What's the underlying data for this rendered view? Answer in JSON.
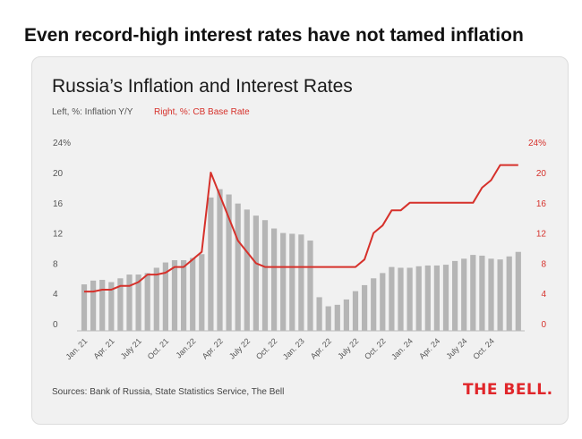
{
  "headline": "Even record-high interest rates have not tamed inflation",
  "card": {
    "title": "Russia’s Inflation and Interest Rates",
    "legend_left": "Left, %:  Inflation Y/Y",
    "legend_right": "Right, %: CB Base Rate",
    "source": "Sources: Bank of Russia,  State Statistics Service, The Bell",
    "logo": "THE BELL."
  },
  "colors": {
    "inflation": "#b5b5b5",
    "rate": "#d6312b",
    "background": "#f1f1f1"
  },
  "chart_data": {
    "type": "bar",
    "ylim": [
      0,
      24
    ],
    "y_ticks": [
      "0",
      "4",
      "8",
      "12",
      "16",
      "20",
      "24%"
    ],
    "x_tick_labels": [
      "Jan. 21",
      "Apr. 21",
      "July 21",
      "Oct. 21",
      "Jan.22",
      "Apr. 22",
      "July 22",
      "Oct. 22",
      "Jan. 23",
      "Apr. 22",
      "July 22",
      "Oct. 22",
      "Jan. 24",
      "Apr. 24",
      "July 24",
      "Oct. 24"
    ],
    "series": [
      {
        "name": "Inflation Y/Y",
        "axis": "left",
        "type": "bar",
        "values": [
          5.2,
          5.7,
          5.8,
          5.5,
          6.0,
          6.5,
          6.5,
          6.7,
          7.4,
          8.1,
          8.4,
          8.4,
          8.7,
          9.2,
          16.7,
          17.8,
          17.1,
          15.9,
          15.1,
          14.3,
          13.7,
          12.6,
          12.0,
          11.9,
          11.8,
          11.0,
          3.5,
          2.3,
          2.5,
          3.2,
          4.3,
          5.1,
          6.0,
          6.7,
          7.5,
          7.4,
          7.4,
          7.6,
          7.7,
          7.7,
          7.8,
          8.3,
          8.6,
          9.1,
          9.0,
          8.6,
          8.5,
          8.9,
          9.5
        ]
      },
      {
        "name": "CB Base Rate",
        "axis": "right",
        "type": "line",
        "values": [
          4.25,
          4.25,
          4.5,
          4.5,
          5.0,
          5.0,
          5.5,
          6.5,
          6.5,
          6.75,
          7.5,
          7.5,
          8.5,
          9.5,
          20.0,
          17.0,
          14.0,
          11.0,
          9.5,
          8.0,
          7.5,
          7.5,
          7.5,
          7.5,
          7.5,
          7.5,
          7.5,
          7.5,
          7.5,
          7.5,
          7.5,
          8.5,
          12.0,
          13.0,
          15.0,
          15.0,
          16.0,
          16.0,
          16.0,
          16.0,
          16.0,
          16.0,
          16.0,
          16.0,
          18.0,
          19.0,
          21.0,
          21.0,
          21.0
        ]
      }
    ]
  }
}
